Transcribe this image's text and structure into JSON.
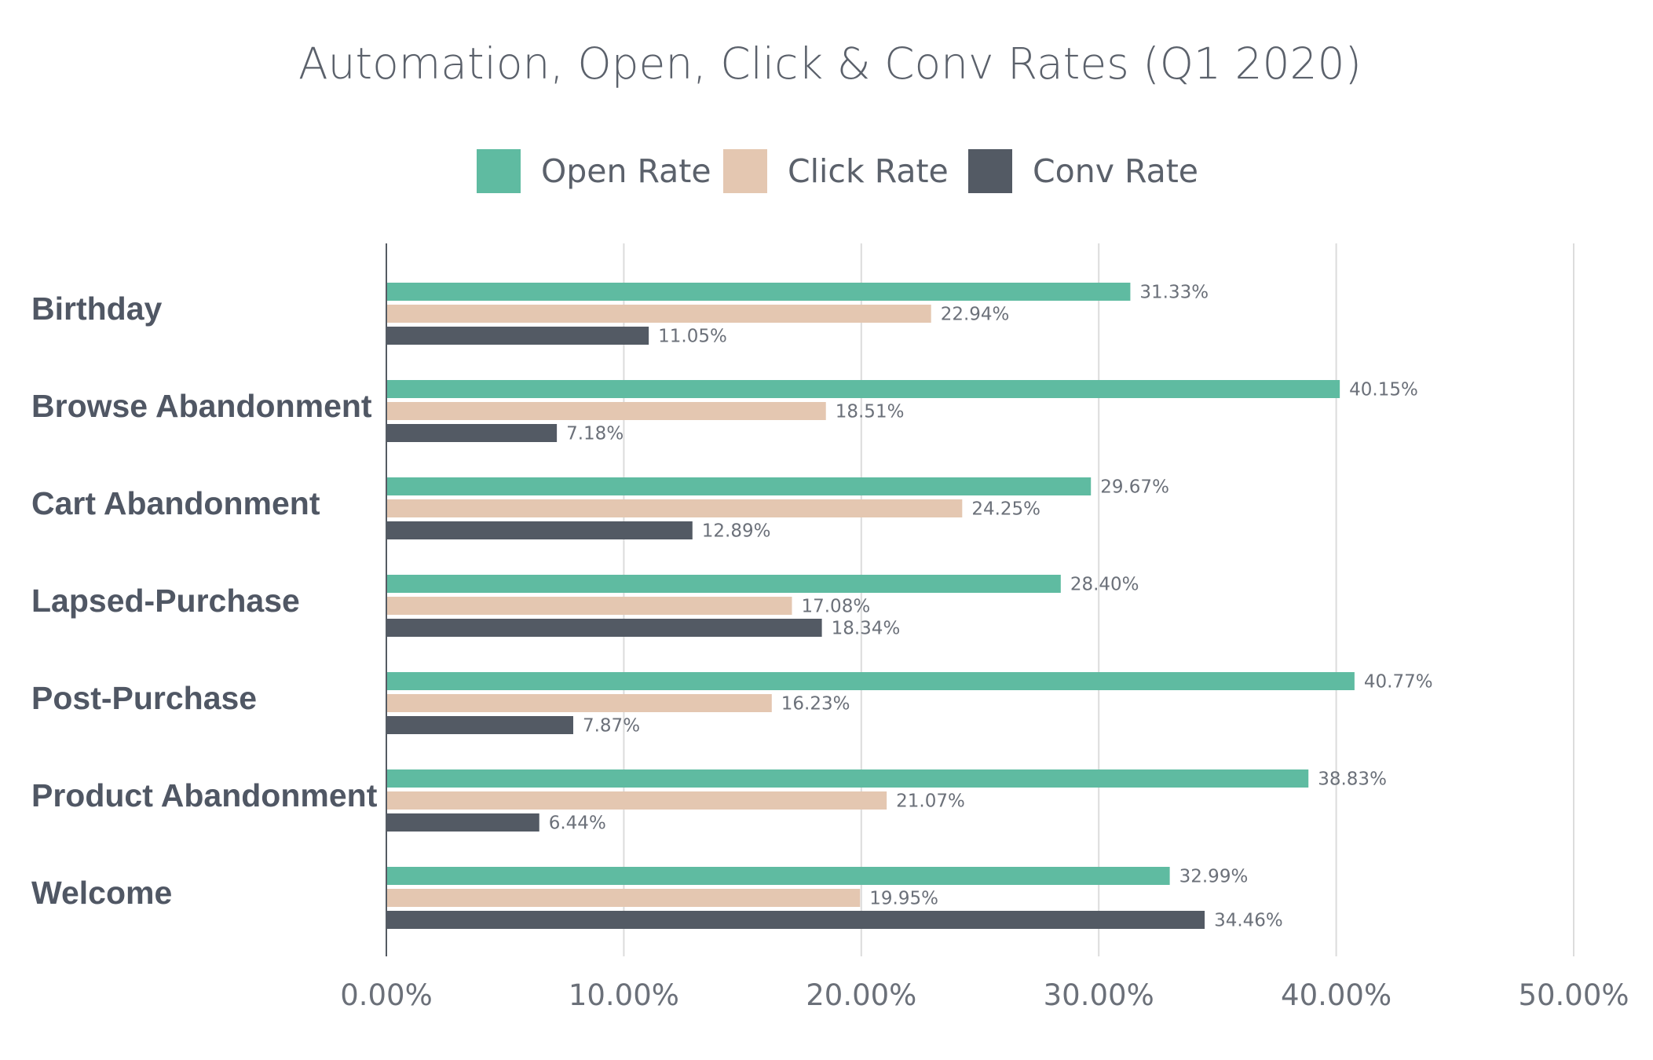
{
  "chart_data": {
    "type": "bar",
    "orientation": "horizontal",
    "title": "Automation, Open, Click & Conv Rates (Q1 2020)",
    "categories": [
      "Birthday",
      "Browse Abandonment",
      "Cart Abandonment",
      "Lapsed-Purchase",
      "Post-Purchase",
      "Product Abandonment",
      "Welcome"
    ],
    "series": [
      {
        "name": "Open Rate",
        "color": "#5fbba1",
        "values": [
          31.33,
          40.15,
          29.67,
          28.4,
          40.77,
          38.83,
          32.99
        ]
      },
      {
        "name": "Click Rate",
        "color": "#e4c7b1",
        "values": [
          22.94,
          18.51,
          24.25,
          17.08,
          16.23,
          21.07,
          19.95
        ]
      },
      {
        "name": "Conv Rate",
        "color": "#535a64",
        "values": [
          11.05,
          7.18,
          12.89,
          18.34,
          7.87,
          6.44,
          34.46
        ]
      }
    ],
    "xlim": [
      0,
      50
    ],
    "xticks": [
      0,
      10,
      20,
      30,
      40,
      50
    ],
    "tick_format": "percent-2dp",
    "grid": true,
    "legend_position": "top-center",
    "xlabel": "",
    "ylabel": ""
  }
}
